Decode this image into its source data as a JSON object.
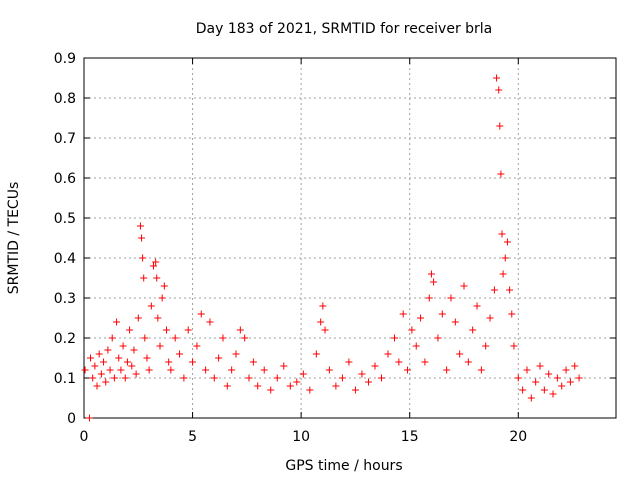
{
  "chart_data": {
    "type": "scatter",
    "title": "Day 183 of 2021, SRMTID for receiver brla",
    "xlabel": "GPS time / hours",
    "ylabel": "SRMTID / TECUs",
    "xlim": [
      0,
      24.5
    ],
    "ylim": [
      0,
      0.9
    ],
    "x_ticks": [
      0,
      5,
      10,
      15,
      20
    ],
    "x_tick_labels": [
      "0",
      "5",
      "10",
      "15",
      "20"
    ],
    "y_ticks": [
      0,
      0.1,
      0.2,
      0.3,
      0.4,
      0.5,
      0.6,
      0.7,
      0.8,
      0.9
    ],
    "y_tick_labels": [
      "0",
      "0.1",
      "0.2",
      "0.3",
      "0.4",
      "0.5",
      "0.6",
      "0.7",
      "0.8",
      "0.9"
    ],
    "grid": true,
    "marker": "plus",
    "series": [
      {
        "name": "SRMTID",
        "color": "#ff0000",
        "x": [
          0.05,
          0.25,
          0.3,
          0.4,
          0.5,
          0.6,
          0.7,
          0.8,
          0.9,
          1.0,
          1.1,
          1.2,
          1.3,
          1.4,
          1.5,
          1.6,
          1.7,
          1.8,
          1.9,
          2.0,
          2.1,
          2.2,
          2.3,
          2.4,
          2.5,
          2.6,
          2.65,
          2.7,
          2.75,
          2.8,
          2.9,
          3.0,
          3.1,
          3.2,
          3.3,
          3.35,
          3.4,
          3.5,
          3.6,
          3.7,
          3.8,
          3.9,
          4.0,
          4.2,
          4.4,
          4.6,
          4.8,
          5.0,
          5.2,
          5.4,
          5.6,
          5.8,
          6.0,
          6.2,
          6.4,
          6.6,
          6.8,
          7.0,
          7.2,
          7.4,
          7.6,
          7.8,
          8.0,
          8.3,
          8.6,
          8.9,
          9.2,
          9.5,
          9.8,
          10.1,
          10.4,
          10.7,
          10.9,
          11.0,
          11.1,
          11.3,
          11.6,
          11.9,
          12.2,
          12.5,
          12.8,
          13.1,
          13.4,
          13.7,
          14.0,
          14.3,
          14.5,
          14.7,
          14.9,
          15.1,
          15.3,
          15.5,
          15.7,
          15.9,
          16.0,
          16.1,
          16.3,
          16.5,
          16.7,
          16.9,
          17.1,
          17.3,
          17.5,
          17.7,
          17.9,
          18.1,
          18.3,
          18.5,
          18.7,
          18.9,
          19.0,
          19.1,
          19.15,
          19.2,
          19.25,
          19.3,
          19.4,
          19.5,
          19.6,
          19.7,
          19.8,
          20.0,
          20.2,
          20.4,
          20.6,
          20.8,
          21.0,
          21.2,
          21.4,
          21.6,
          21.8,
          22.0,
          22.2,
          22.4,
          22.6,
          22.8
        ],
        "y": [
          0.12,
          0.0,
          0.15,
          0.1,
          0.13,
          0.08,
          0.16,
          0.11,
          0.14,
          0.09,
          0.17,
          0.12,
          0.2,
          0.1,
          0.24,
          0.15,
          0.12,
          0.18,
          0.1,
          0.14,
          0.22,
          0.13,
          0.17,
          0.11,
          0.25,
          0.48,
          0.45,
          0.4,
          0.35,
          0.2,
          0.15,
          0.12,
          0.28,
          0.38,
          0.39,
          0.35,
          0.25,
          0.18,
          0.3,
          0.33,
          0.22,
          0.14,
          0.12,
          0.2,
          0.16,
          0.1,
          0.22,
          0.14,
          0.18,
          0.26,
          0.12,
          0.24,
          0.1,
          0.15,
          0.2,
          0.08,
          0.12,
          0.16,
          0.22,
          0.2,
          0.1,
          0.14,
          0.08,
          0.12,
          0.07,
          0.1,
          0.13,
          0.08,
          0.09,
          0.11,
          0.07,
          0.16,
          0.24,
          0.28,
          0.22,
          0.12,
          0.08,
          0.1,
          0.14,
          0.07,
          0.11,
          0.09,
          0.13,
          0.1,
          0.16,
          0.2,
          0.14,
          0.26,
          0.12,
          0.22,
          0.18,
          0.25,
          0.14,
          0.3,
          0.36,
          0.34,
          0.2,
          0.26,
          0.12,
          0.3,
          0.24,
          0.16,
          0.33,
          0.14,
          0.22,
          0.28,
          0.12,
          0.18,
          0.25,
          0.32,
          0.85,
          0.82,
          0.73,
          0.61,
          0.46,
          0.36,
          0.4,
          0.44,
          0.32,
          0.26,
          0.18,
          0.1,
          0.07,
          0.12,
          0.05,
          0.09,
          0.13,
          0.07,
          0.11,
          0.06,
          0.1,
          0.08,
          0.12,
          0.09,
          0.13,
          0.1
        ]
      }
    ]
  }
}
